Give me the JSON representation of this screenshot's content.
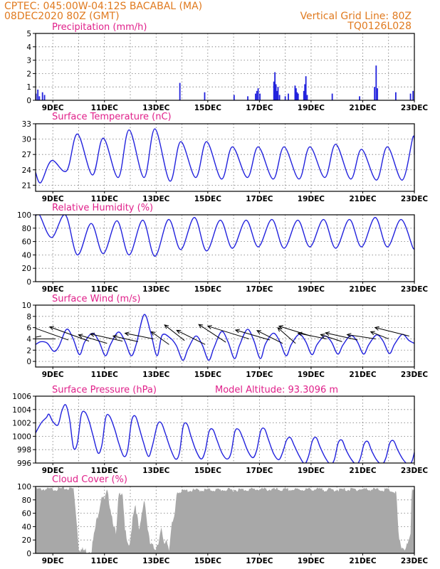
{
  "header": {
    "line1": "CPTEC:   045:00W-04:12S   BACABAL (MA)",
    "line2": "08DEC2020 80Z (GMT)",
    "right1": "Vertical Grid Line: 80Z",
    "right2": "TQ0126L028"
  },
  "colors": {
    "line": "#2222dd",
    "cloud": "#a8a8a8",
    "header": "#e07a1f",
    "title": "#e0208a"
  },
  "chart_data": [
    {
      "type": "bar",
      "title": "Precipitation (mm/h)",
      "x_ticks": [
        "9DEC",
        "11DEC",
        "13DEC",
        "15DEC",
        "17DEC",
        "19DEC",
        "21DEC",
        "23DEC"
      ],
      "ylim": [
        0,
        5
      ],
      "y_ticks": [
        "0",
        "1",
        "2",
        "3",
        "4",
        "5"
      ],
      "x_range_days": [
        8.333,
        23.0
      ],
      "grid": "dotted",
      "bars": [
        [
          8.35,
          0.5
        ],
        [
          8.42,
          0.8
        ],
        [
          8.48,
          0.3
        ],
        [
          8.6,
          0.6
        ],
        [
          8.68,
          0.4
        ],
        [
          13.92,
          1.3
        ],
        [
          14.88,
          0.6
        ],
        [
          16.02,
          0.4
        ],
        [
          16.55,
          0.3
        ],
        [
          16.85,
          0.5
        ],
        [
          16.9,
          0.7
        ],
        [
          16.95,
          0.9
        ],
        [
          17.02,
          0.5
        ],
        [
          17.56,
          1.4
        ],
        [
          17.6,
          2.1
        ],
        [
          17.64,
          1.2
        ],
        [
          17.68,
          0.7
        ],
        [
          17.72,
          1.0
        ],
        [
          17.78,
          0.4
        ],
        [
          18.0,
          0.3
        ],
        [
          18.12,
          0.5
        ],
        [
          18.38,
          1.1
        ],
        [
          18.42,
          0.9
        ],
        [
          18.46,
          0.6
        ],
        [
          18.5,
          0.5
        ],
        [
          18.72,
          0.7
        ],
        [
          18.76,
          1.2
        ],
        [
          18.8,
          1.8
        ],
        [
          18.85,
          0.4
        ],
        [
          19.82,
          0.5
        ],
        [
          20.88,
          0.3
        ],
        [
          21.46,
          1.0
        ],
        [
          21.52,
          2.6
        ],
        [
          21.57,
          0.9
        ],
        [
          22.28,
          0.6
        ],
        [
          22.85,
          0.5
        ],
        [
          22.95,
          0.7
        ]
      ]
    },
    {
      "type": "line",
      "title": "Surface Temperature (nC)",
      "x_ticks": [
        "9DEC",
        "11DEC",
        "13DEC",
        "15DEC",
        "17DEC",
        "19DEC",
        "21DEC",
        "23DEC"
      ],
      "ylim": [
        19.8,
        33
      ],
      "y_ticks": [
        "21",
        "24",
        "27",
        "30",
        "33"
      ],
      "y_tick_values": [
        21,
        24,
        27,
        30,
        33
      ],
      "daily_max": [
        25.8,
        31.0,
        30.2,
        31.8,
        32.0,
        29.5,
        29.5,
        28.5,
        28.5,
        28.5,
        28.5,
        29.0,
        28.0,
        28.5,
        30.5
      ],
      "daily_min": [
        21.5,
        23.8,
        23.0,
        22.5,
        22.5,
        21.8,
        22.5,
        22.2,
        22.5,
        22.2,
        22.2,
        22.5,
        22.2,
        22.0,
        22.0
      ],
      "start": 23.5,
      "end": 27.0
    },
    {
      "type": "line",
      "title": "Relative Humidity (%)",
      "x_ticks": [
        "9DEC",
        "11DEC",
        "13DEC",
        "15DEC",
        "17DEC",
        "19DEC",
        "21DEC",
        "23DEC"
      ],
      "ylim": [
        0,
        100
      ],
      "y_ticks": [
        "0",
        "20",
        "40",
        "60",
        "80",
        "100"
      ],
      "y_tick_values": [
        0,
        20,
        40,
        60,
        80,
        100
      ],
      "daily_max": [
        100,
        100,
        87,
        91,
        92,
        93,
        96,
        92,
        92,
        93,
        92,
        93,
        93,
        96,
        93
      ],
      "daily_min": [
        66,
        40,
        42,
        40,
        38,
        48,
        46,
        50,
        52,
        50,
        52,
        50,
        52,
        52,
        50
      ],
      "start": 98,
      "end": 60
    },
    {
      "type": "line",
      "title": "Surface Wind (m/s)",
      "x_ticks": [
        "9DEC",
        "11DEC",
        "13DEC",
        "15DEC",
        "17DEC",
        "19DEC",
        "21DEC",
        "23DEC"
      ],
      "ylim": [
        -1,
        10
      ],
      "y_ticks": [
        "0",
        "2",
        "4",
        "6",
        "8",
        "10"
      ],
      "y_tick_values": [
        0,
        2,
        4,
        6,
        8,
        10
      ],
      "daily_max": [
        3.5,
        5.7,
        5.0,
        5.2,
        8.3,
        4.2,
        4.5,
        5.3,
        5.7,
        5.0,
        4.8,
        4.5,
        4.6,
        4.7,
        4.8
      ],
      "daily_min": [
        1.8,
        1.2,
        1.0,
        1.0,
        1.0,
        0.2,
        0.2,
        0.5,
        0.5,
        1.0,
        1.2,
        1.3,
        1.3,
        1.4,
        1.5
      ],
      "start": 3.0,
      "end": 3.2,
      "arrows": [
        [
          8.55,
          4.5,
          -50,
          10
        ],
        [
          9.1,
          4.0,
          -40,
          0
        ],
        [
          9.6,
          3.8,
          -70,
          -25
        ],
        [
          10.4,
          3.6,
          -55,
          -20
        ],
        [
          11.1,
          3.2,
          -40,
          -12
        ],
        [
          11.7,
          3.6,
          -45,
          -10
        ],
        [
          12.3,
          3.5,
          -35,
          -8
        ],
        [
          12.9,
          4.0,
          -40,
          -8
        ],
        [
          13.5,
          3.0,
          -25,
          -18
        ],
        [
          14.1,
          3.7,
          -28,
          -22
        ],
        [
          14.9,
          3.0,
          -40,
          -20
        ],
        [
          15.7,
          3.4,
          -38,
          -25
        ],
        [
          16.6,
          4.0,
          -58,
          -18
        ],
        [
          17.4,
          3.8,
          -48,
          -14
        ],
        [
          17.9,
          3.2,
          -36,
          -18
        ],
        [
          18.4,
          3.2,
          -25,
          -22
        ],
        [
          19.0,
          4.5,
          -45,
          -14
        ],
        [
          19.6,
          4.0,
          -40,
          -8
        ],
        [
          20.2,
          3.5,
          -30,
          -10
        ],
        [
          20.8,
          3.8,
          -45,
          -10
        ],
        [
          21.5,
          4.0,
          -40,
          -6
        ],
        [
          22.0,
          4.0,
          -25,
          -10
        ],
        [
          22.8,
          4.5,
          -48,
          -12
        ]
      ]
    },
    {
      "type": "line",
      "title": "Surface Pressure (hPa)",
      "annotation": "Model Altitude: 93.3096 m",
      "x_ticks": [
        "9DEC",
        "11DEC",
        "13DEC",
        "15DEC",
        "17DEC",
        "19DEC",
        "21DEC",
        "23DEC"
      ],
      "ylim": [
        996,
        1006
      ],
      "y_ticks": [
        "996",
        "998",
        "1000",
        "1002",
        "1004",
        "1006"
      ],
      "y_tick_values": [
        996,
        998,
        1000,
        1002,
        1004,
        1006
      ],
      "series_points": [
        [
          8.333,
          1000.5
        ],
        [
          8.55,
          1002.0
        ],
        [
          8.75,
          1002.8
        ],
        [
          8.85,
          1003.3
        ],
        [
          9.0,
          1002.2
        ],
        [
          9.2,
          1001.7
        ],
        [
          9.35,
          1003.8
        ],
        [
          9.5,
          1004.7
        ],
        [
          9.65,
          1002.5
        ],
        [
          9.8,
          998.3
        ],
        [
          9.95,
          999.0
        ],
        [
          10.1,
          1003.2
        ],
        [
          10.25,
          1003.6
        ],
        [
          10.4,
          1002.3
        ],
        [
          10.55,
          1000.2
        ],
        [
          10.75,
          997.5
        ],
        [
          10.9,
          998.7
        ],
        [
          11.05,
          1002.8
        ],
        [
          11.2,
          1003.0
        ],
        [
          11.4,
          1001.0
        ],
        [
          11.55,
          999.0
        ],
        [
          11.75,
          997.0
        ],
        [
          11.9,
          998.0
        ],
        [
          12.05,
          1002.3
        ],
        [
          12.2,
          1003.0
        ],
        [
          12.35,
          1001.2
        ],
        [
          12.5,
          999.2
        ],
        [
          12.7,
          997.0
        ],
        [
          12.85,
          998.5
        ],
        [
          13.05,
          1001.7
        ],
        [
          13.2,
          1002.0
        ],
        [
          13.35,
          1000.5
        ],
        [
          13.55,
          998.2
        ],
        [
          13.75,
          996.6
        ],
        [
          13.9,
          997.5
        ],
        [
          14.05,
          1001.5
        ],
        [
          14.2,
          1001.8
        ],
        [
          14.35,
          1000.0
        ],
        [
          14.55,
          997.8
        ],
        [
          14.75,
          996.6
        ],
        [
          14.9,
          997.8
        ],
        [
          15.05,
          1000.7
        ],
        [
          15.2,
          1001.0
        ],
        [
          15.35,
          999.5
        ],
        [
          15.55,
          997.5
        ],
        [
          15.75,
          996.6
        ],
        [
          15.9,
          997.5
        ],
        [
          16.05,
          1000.7
        ],
        [
          16.2,
          1001.0
        ],
        [
          16.35,
          999.8
        ],
        [
          16.55,
          997.8
        ],
        [
          16.75,
          996.8
        ],
        [
          16.9,
          998.0
        ],
        [
          17.05,
          1000.8
        ],
        [
          17.2,
          1001.1
        ],
        [
          17.35,
          999.5
        ],
        [
          17.55,
          997.4
        ],
        [
          17.75,
          996.5
        ],
        [
          17.9,
          997.6
        ],
        [
          18.05,
          999.4
        ],
        [
          18.2,
          999.8
        ],
        [
          18.35,
          998.6
        ],
        [
          18.55,
          997.0
        ],
        [
          18.75,
          995.9
        ],
        [
          18.9,
          997.0
        ],
        [
          19.05,
          999.3
        ],
        [
          19.2,
          999.8
        ],
        [
          19.35,
          998.4
        ],
        [
          19.55,
          996.8
        ],
        [
          19.75,
          995.8
        ],
        [
          19.9,
          996.5
        ],
        [
          20.05,
          999.0
        ],
        [
          20.2,
          999.4
        ],
        [
          20.35,
          998.0
        ],
        [
          20.55,
          996.6
        ],
        [
          20.75,
          995.8
        ],
        [
          20.9,
          996.6
        ],
        [
          21.05,
          998.8
        ],
        [
          21.2,
          999.2
        ],
        [
          21.35,
          997.8
        ],
        [
          21.55,
          996.4
        ],
        [
          21.75,
          995.8
        ],
        [
          21.9,
          996.8
        ],
        [
          22.05,
          999.0
        ],
        [
          22.2,
          999.3
        ],
        [
          22.35,
          998.0
        ],
        [
          22.55,
          996.6
        ],
        [
          22.75,
          995.8
        ],
        [
          22.9,
          996.2
        ],
        [
          23.0,
          997.6
        ]
      ]
    },
    {
      "type": "area",
      "title": "Cloud Cover (%)",
      "x_ticks": [
        "9DEC",
        "11DEC",
        "13DEC",
        "15DEC",
        "17DEC",
        "19DEC",
        "21DEC",
        "23DEC"
      ],
      "ylim": [
        0,
        100
      ],
      "y_ticks": [
        "0",
        "20",
        "40",
        "60",
        "80",
        "100"
      ],
      "y_tick_values": [
        0,
        20,
        40,
        60,
        80,
        100
      ],
      "profile": [
        [
          8.333,
          96
        ],
        [
          9.0,
          96
        ],
        [
          9.5,
          97
        ],
        [
          9.8,
          97
        ],
        [
          9.9,
          60
        ],
        [
          10.0,
          10
        ],
        [
          10.1,
          5
        ],
        [
          10.3,
          4
        ],
        [
          10.5,
          6
        ],
        [
          10.7,
          50
        ],
        [
          10.9,
          88
        ],
        [
          11.0,
          78
        ],
        [
          11.1,
          95
        ],
        [
          11.3,
          55
        ],
        [
          11.45,
          25
        ],
        [
          11.55,
          88
        ],
        [
          11.7,
          92
        ],
        [
          11.8,
          35
        ],
        [
          11.9,
          8
        ],
        [
          12.0,
          15
        ],
        [
          12.1,
          60
        ],
        [
          12.2,
          75
        ],
        [
          12.35,
          30
        ],
        [
          12.45,
          60
        ],
        [
          12.55,
          85
        ],
        [
          12.65,
          45
        ],
        [
          12.75,
          15
        ],
        [
          12.9,
          8
        ],
        [
          13.0,
          10
        ],
        [
          13.1,
          20
        ],
        [
          13.2,
          35
        ],
        [
          13.3,
          12
        ],
        [
          13.4,
          22
        ],
        [
          13.5,
          8
        ],
        [
          13.6,
          40
        ],
        [
          13.7,
          50
        ],
        [
          13.8,
          92
        ],
        [
          14.2,
          94
        ],
        [
          15.0,
          95
        ],
        [
          16.0,
          95
        ],
        [
          17.0,
          96
        ],
        [
          18.0,
          95
        ],
        [
          19.0,
          96
        ],
        [
          20.0,
          95
        ],
        [
          21.0,
          96
        ],
        [
          22.0,
          95
        ],
        [
          22.3,
          90
        ],
        [
          22.4,
          18
        ],
        [
          22.5,
          10
        ],
        [
          22.6,
          8
        ],
        [
          22.7,
          10
        ],
        [
          22.85,
          22
        ],
        [
          22.9,
          96
        ],
        [
          23.0,
          96
        ]
      ]
    }
  ]
}
